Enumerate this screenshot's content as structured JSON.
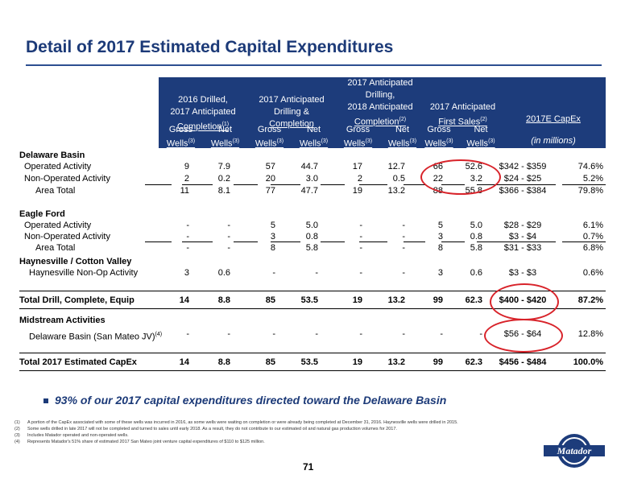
{
  "title": "Detail of 2017 Estimated Capital Expenditures",
  "header": {
    "groups": [
      {
        "l1": "2016 Drilled,",
        "l2": "2017 Anticipated",
        "l3": "Completion",
        "sup": "(1)"
      },
      {
        "l1": "2017 Anticipated",
        "l2": "Drilling &",
        "l3": "Completion",
        "sup": ""
      },
      {
        "l0": "2017 Anticipated",
        "l1": "Drilling,",
        "l2": "2018 Anticipated",
        "l3": "Completion",
        "sup": "(2)"
      },
      {
        "l2": "2017 Anticipated",
        "l3": "First Sales",
        "sup": "(2)"
      },
      {
        "l3": "2017E CapEx"
      }
    ],
    "gross": "Gross",
    "net": "Net",
    "wells": "Wells",
    "wells_sup": "(3)",
    "capex_unit": "(in millions)"
  },
  "sections": {
    "delaware": "Delaware Basin",
    "eagle": "Eagle Ford",
    "haynes": "Haynesville / Cotton Valley",
    "midstream": "Midstream Activities"
  },
  "rows": {
    "d_op": {
      "label": "Operated Activity",
      "v": [
        "9",
        "7.9",
        "57",
        "44.7",
        "17",
        "12.7",
        "66",
        "52.6",
        "$342 - $359",
        "74.6%"
      ]
    },
    "d_nonop": {
      "label": "Non-Operated Activity",
      "v": [
        "2",
        "0.2",
        "20",
        "3.0",
        "2",
        "0.5",
        "22",
        "3.2",
        "$24 - $25",
        "5.2%"
      ]
    },
    "d_total": {
      "label": "Area Total",
      "v": [
        "11",
        "8.1",
        "77",
        "47.7",
        "19",
        "13.2",
        "88",
        "55.8",
        "$366 - $384",
        "79.8%"
      ]
    },
    "e_op": {
      "label": "Operated Activity",
      "v": [
        "-",
        "-",
        "5",
        "5.0",
        "-",
        "-",
        "5",
        "5.0",
        "$28 - $29",
        "6.1%"
      ]
    },
    "e_nonop": {
      "label": "Non-Operated Activity",
      "v": [
        "-",
        "-",
        "3",
        "0.8",
        "-",
        "-",
        "3",
        "0.8",
        "$3 - $4",
        "0.7%"
      ]
    },
    "e_total": {
      "label": "Area Total",
      "v": [
        "-",
        "-",
        "8",
        "5.8",
        "-",
        "-",
        "8",
        "5.8",
        "$31 - $33",
        "6.8%"
      ]
    },
    "h_nonop": {
      "label": "Haynesville Non-Op Activity",
      "v": [
        "3",
        "0.6",
        "-",
        "-",
        "-",
        "-",
        "3",
        "0.6",
        "$3 - $3",
        "0.6%"
      ]
    },
    "tdce": {
      "label": "Total Drill, Complete, Equip",
      "v": [
        "14",
        "8.8",
        "85",
        "53.5",
        "19",
        "13.2",
        "99",
        "62.3",
        "$400 - $420",
        "87.2%"
      ]
    },
    "mid": {
      "label": "Delaware Basin (San Mateo JV)",
      "sup": "(4)",
      "v": [
        "-",
        "-",
        "-",
        "-",
        "-",
        "-",
        "-",
        "-",
        "$56 - $64",
        "12.8%"
      ]
    },
    "total": {
      "label": "Total 2017 Estimated CapEx",
      "v": [
        "14",
        "8.8",
        "85",
        "53.5",
        "19",
        "13.2",
        "99",
        "62.3",
        "$456 - $484",
        "100.0%"
      ]
    }
  },
  "bullet": "93% of our 2017 capital expenditures directed toward the Delaware Basin",
  "footnotes": [
    {
      "n": "(1)",
      "t": "A portion of the CapEx associated with some of these wells was incurred in 2016, as some wells were waiting on completion or were already being completed at December 31, 2016. Haynesville wells were drilled in 2015."
    },
    {
      "n": "(2)",
      "t": "Some wells drilled in late 2017 will not be completed and turned to sales until early 2018. As a result, they do not contribute to our estimated oil and natural gas production volumes for 2017."
    },
    {
      "n": "(3)",
      "t": "Includes Matador operated and non-operated wells."
    },
    {
      "n": "(4)",
      "t": "Represents Matador's 51% share of estimated 2017 San Mateo joint venture capital expenditures of $110 to $125 million."
    }
  ],
  "page_number": "71",
  "logo_text": "Matador",
  "colors": {
    "title": "#1c3a78",
    "header_bg": "#1d3c7b",
    "highlight": "#d8232a"
  }
}
